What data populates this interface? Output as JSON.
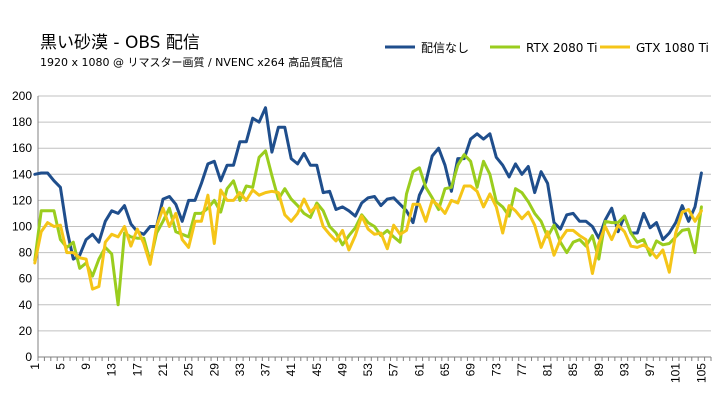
{
  "chart_data": {
    "type": "line",
    "title": "黒い砂漠 - OBS 配信",
    "subtitle": "1920 x 1080 @ リマスター画質 / NVENC x264 高品質配信",
    "ylim": [
      0,
      200
    ],
    "yticks": [
      0,
      20,
      40,
      60,
      80,
      100,
      120,
      140,
      160,
      180,
      200
    ],
    "xtick_labels": [
      "1",
      "5",
      "9",
      "13",
      "17",
      "21",
      "25",
      "29",
      "33",
      "37",
      "41",
      "45",
      "49",
      "53",
      "57",
      "61",
      "65",
      "69",
      "73",
      "77",
      "81",
      "85",
      "89",
      "93",
      "97",
      "101",
      "105"
    ],
    "xtick_every": 4,
    "grid": "horizontal",
    "legend_position": "top-right",
    "x": [
      1,
      2,
      3,
      4,
      5,
      6,
      7,
      8,
      9,
      10,
      11,
      12,
      13,
      14,
      15,
      16,
      17,
      18,
      19,
      20,
      21,
      22,
      23,
      24,
      25,
      26,
      27,
      28,
      29,
      30,
      31,
      32,
      33,
      34,
      35,
      36,
      37,
      38,
      39,
      40,
      41,
      42,
      43,
      44,
      45,
      46,
      47,
      48,
      49,
      50,
      51,
      52,
      53,
      54,
      55,
      56,
      57,
      58,
      59,
      60,
      61,
      62,
      63,
      64,
      65,
      66,
      67,
      68,
      69,
      70,
      71,
      72,
      73,
      74,
      75,
      76,
      77,
      78,
      79,
      80,
      81,
      82,
      83,
      84,
      85,
      86,
      87,
      88,
      89,
      90,
      91,
      92,
      93,
      94,
      95,
      96,
      97,
      98,
      99,
      100,
      101,
      102,
      103,
      104,
      105
    ],
    "series": [
      {
        "name": "配信なし",
        "color": "#1f4e8c",
        "values": [
          140,
          141,
          141,
          135,
          130,
          98,
          75,
          78,
          90,
          94,
          88,
          104,
          112,
          110,
          116,
          102,
          96,
          94,
          100,
          100,
          121,
          123,
          117,
          104,
          120,
          120,
          133,
          148,
          150,
          135,
          147,
          147,
          165,
          165,
          183,
          180,
          191,
          157,
          176,
          176,
          152,
          148,
          156,
          147,
          147,
          126,
          127,
          113,
          115,
          112,
          108,
          118,
          122,
          123,
          116,
          121,
          122,
          117,
          112,
          103,
          124,
          134,
          154,
          160,
          147,
          127,
          152,
          152,
          167,
          171,
          167,
          171,
          153,
          147,
          138,
          148,
          140,
          146,
          126,
          142,
          133,
          103,
          98,
          109,
          110,
          104,
          104,
          100,
          91,
          105,
          114,
          96,
          108,
          95,
          95,
          110,
          99,
          103,
          90,
          95,
          103,
          116,
          104,
          115,
          141
        ]
      },
      {
        "name": "RTX 2080 Ti",
        "color": "#9acd1e",
        "values": [
          74,
          112,
          112,
          112,
          90,
          84,
          88,
          68,
          72,
          62,
          75,
          84,
          79,
          40,
          95,
          92,
          91,
          91,
          73,
          95,
          104,
          114,
          96,
          94,
          92,
          110,
          110,
          114,
          120,
          111,
          129,
          135,
          120,
          131,
          130,
          153,
          158,
          139,
          121,
          129,
          121,
          116,
          110,
          107,
          118,
          112,
          100,
          95,
          86,
          93,
          99,
          109,
          103,
          100,
          93,
          97,
          92,
          88,
          125,
          142,
          145,
          130,
          122,
          113,
          129,
          130,
          147,
          155,
          150,
          130,
          150,
          140,
          119,
          115,
          108,
          129,
          126,
          119,
          110,
          104,
          92,
          101,
          88,
          80,
          88,
          90,
          85,
          93,
          75,
          104,
          103,
          103,
          108,
          95,
          88,
          90,
          78,
          89,
          86,
          87,
          92,
          97,
          98,
          80,
          115
        ]
      },
      {
        "name": "GTX 1080 Ti",
        "color": "#f5c518",
        "values": [
          72,
          96,
          103,
          100,
          101,
          80,
          80,
          76,
          75,
          52,
          54,
          88,
          94,
          92,
          100,
          85,
          98,
          87,
          71,
          100,
          114,
          100,
          110,
          90,
          84,
          104,
          104,
          124,
          87,
          128,
          120,
          120,
          126,
          120,
          128,
          124,
          126,
          127,
          126,
          109,
          104,
          110,
          121,
          111,
          116,
          100,
          94,
          89,
          97,
          82,
          93,
          108,
          98,
          94,
          95,
          83,
          101,
          94,
          97,
          117,
          117,
          104,
          120,
          116,
          110,
          120,
          118,
          131,
          131,
          127,
          115,
          125,
          115,
          95,
          116,
          112,
          106,
          111,
          101,
          84,
          96,
          78,
          90,
          97,
          97,
          93,
          90,
          64,
          87,
          100,
          90,
          101,
          96,
          85,
          84,
          86,
          82,
          76,
          82,
          65,
          95,
          111,
          113,
          104,
          112
        ]
      }
    ]
  }
}
